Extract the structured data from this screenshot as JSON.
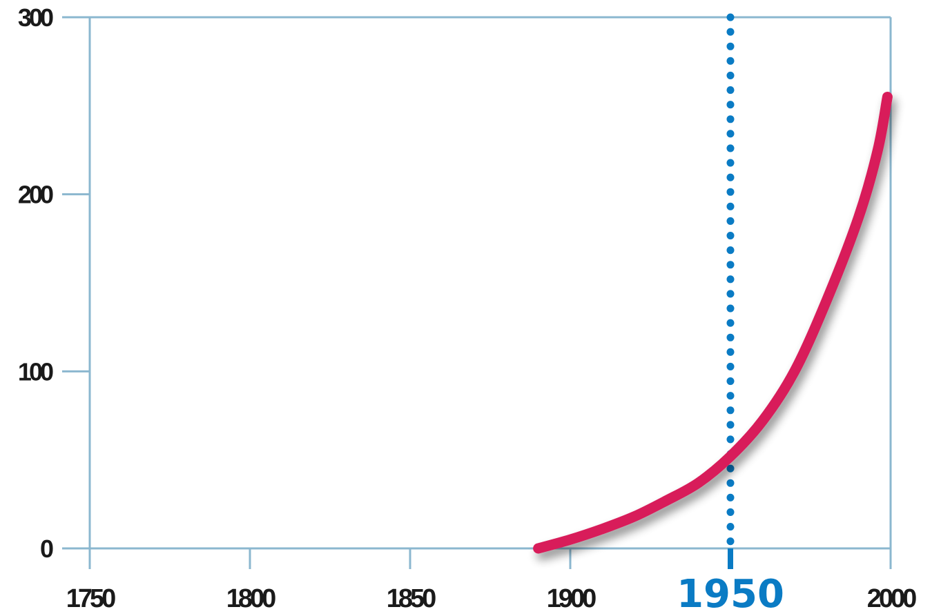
{
  "chart_data": {
    "type": "line",
    "title": "",
    "xlabel": "",
    "ylabel": "",
    "xlim": [
      1750,
      2000
    ],
    "ylim": [
      0,
      300
    ],
    "x_ticks": [
      "1750",
      "1800",
      "1850",
      "1900",
      "1950",
      "2000"
    ],
    "y_ticks": [
      "0",
      "100",
      "200",
      "300"
    ],
    "grid": false,
    "series": [
      {
        "color": "#d81b5a",
        "points": [
          [
            1890,
            0
          ],
          [
            1900,
            5
          ],
          [
            1910,
            11
          ],
          [
            1920,
            18
          ],
          [
            1930,
            27
          ],
          [
            1940,
            37
          ],
          [
            1950,
            52
          ],
          [
            1960,
            72
          ],
          [
            1970,
            100
          ],
          [
            1980,
            140
          ],
          [
            1990,
            187
          ],
          [
            1996,
            225
          ],
          [
            1999,
            255
          ]
        ]
      }
    ],
    "highlight": {
      "x": 1950,
      "label": "1950",
      "color": "#0a7bc4",
      "style": "dotted-vertical-line"
    },
    "colors": {
      "axis": "#8bb7cf",
      "tick_text": "#1a1a1a"
    }
  }
}
